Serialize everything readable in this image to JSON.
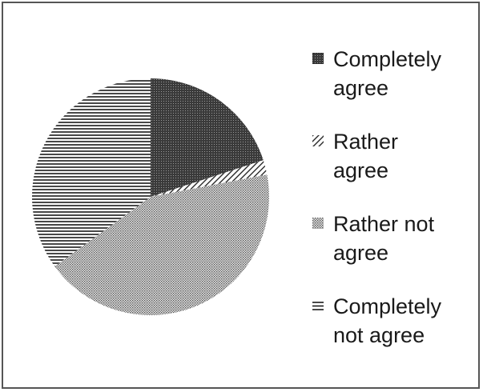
{
  "chart_data": {
    "type": "pie",
    "title": "",
    "legend_position": "right",
    "categories": [
      "Completely agree",
      "Rather agree",
      "Rather not agree",
      "Completely not agree"
    ],
    "values": [
      20,
      2,
      43,
      35
    ],
    "patterns": [
      "dense-crosshatch",
      "diagonal-stripes",
      "dots",
      "horizontal-lines"
    ],
    "colors": {
      "ink": "#1a1a1a",
      "border": "#555555",
      "background": "#ffffff"
    }
  },
  "legend": {
    "items": [
      {
        "line1": "Completely",
        "line2": "agree",
        "pattern": "dense-crosshatch"
      },
      {
        "line1": "Rather",
        "line2": "agree",
        "pattern": "diagonal-stripes"
      },
      {
        "line1": "Rather not",
        "line2": "agree",
        "pattern": "dots"
      },
      {
        "line1": "Completely",
        "line2": "not agree",
        "pattern": "horizontal-lines"
      }
    ]
  }
}
